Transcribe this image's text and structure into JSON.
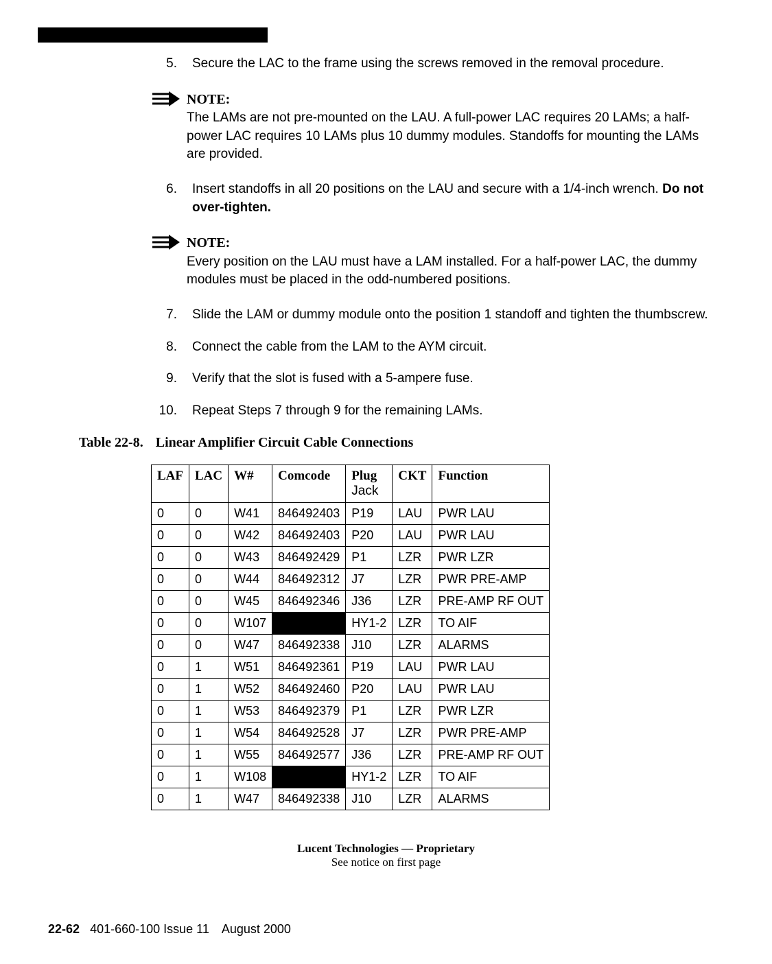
{
  "items": {
    "i5": {
      "num": "5.",
      "text": "Secure the LAC to the frame using the screws removed in the removal procedure."
    },
    "i6": {
      "num": "6.",
      "pre": "Insert standoffs in all 20 positions on the LAU and secure with a 1/4-inch wrench. ",
      "bold": "Do not over-tighten."
    },
    "i7": {
      "num": "7.",
      "text": "Slide the LAM or dummy module onto the position 1 standoff and tighten the thumbscrew."
    },
    "i8": {
      "num": "8.",
      "text": "Connect the cable from the LAM to the AYM circuit."
    },
    "i9": {
      "num": "9.",
      "text": "Verify that the slot is fused with a 5-ampere fuse."
    },
    "i10": {
      "num": "10.",
      "text": "Repeat Steps 7 through 9 for the remaining LAMs."
    }
  },
  "notes": {
    "label": "NOTE:",
    "n1": "The LAMs are not pre-mounted on the LAU. A full-power LAC requires 20 LAMs; a half-power LAC requires 10 LAMs plus 10 dummy modules. Standoffs for mounting the LAMs are provided.",
    "n2": "Every position on the LAU must have a LAM installed. For a half-power LAC, the dummy modules must be placed in the odd-numbered positions."
  },
  "table": {
    "titleNum": "Table 22-8.",
    "titleText": "Linear Amplifier Circuit Cable Connections",
    "headers": {
      "laf": "LAF",
      "lac": "LAC",
      "wnum": "W#",
      "comcode": "Comcode",
      "plugTop": "Plug",
      "plugBot": "Jack",
      "ckt": "CKT",
      "func": "Function"
    },
    "rows": [
      {
        "laf": "0",
        "lac": "0",
        "w": "W41",
        "com": "846492403",
        "plug": "P19",
        "ckt": "LAU",
        "fn": "PWR LAU",
        "redact": false
      },
      {
        "laf": "0",
        "lac": "0",
        "w": "W42",
        "com": "846492403",
        "plug": "P20",
        "ckt": "LAU",
        "fn": "PWR LAU",
        "redact": false
      },
      {
        "laf": "0",
        "lac": "0",
        "w": "W43",
        "com": "846492429",
        "plug": "P1",
        "ckt": "LZR",
        "fn": "PWR LZR",
        "redact": false
      },
      {
        "laf": "0",
        "lac": "0",
        "w": "W44",
        "com": "846492312",
        "plug": "J7",
        "ckt": "LZR",
        "fn": "PWR PRE-AMP",
        "redact": false
      },
      {
        "laf": "0",
        "lac": "0",
        "w": "W45",
        "com": "846492346",
        "plug": "J36",
        "ckt": "LZR",
        "fn": "PRE-AMP RF OUT",
        "redact": false
      },
      {
        "laf": "0",
        "lac": "0",
        "w": "W107",
        "com": "",
        "plug": "HY1-2",
        "ckt": "LZR",
        "fn": "TO AIF",
        "redact": true
      },
      {
        "laf": "0",
        "lac": "0",
        "w": "W47",
        "com": "846492338",
        "plug": "J10",
        "ckt": "LZR",
        "fn": "ALARMS",
        "redact": false
      },
      {
        "laf": "0",
        "lac": "1",
        "w": "W51",
        "com": "846492361",
        "plug": "P19",
        "ckt": "LAU",
        "fn": "PWR LAU",
        "redact": false
      },
      {
        "laf": "0",
        "lac": "1",
        "w": "W52",
        "com": "846492460",
        "plug": "P20",
        "ckt": "LAU",
        "fn": "PWR LAU",
        "redact": false
      },
      {
        "laf": "0",
        "lac": "1",
        "w": "W53",
        "com": "846492379",
        "plug": "P1",
        "ckt": "LZR",
        "fn": "PWR LZR",
        "redact": false
      },
      {
        "laf": "0",
        "lac": "1",
        "w": "W54",
        "com": "846492528",
        "plug": "J7",
        "ckt": "LZR",
        "fn": "PWR PRE-AMP",
        "redact": false
      },
      {
        "laf": "0",
        "lac": "1",
        "w": "W55",
        "com": "846492577",
        "plug": "J36",
        "ckt": "LZR",
        "fn": "PRE-AMP RF OUT",
        "redact": false
      },
      {
        "laf": "0",
        "lac": "1",
        "w": "W108",
        "com": "",
        "plug": "HY1-2",
        "ckt": "LZR",
        "fn": "TO AIF",
        "redact": true
      },
      {
        "laf": "0",
        "lac": "1",
        "w": "W47",
        "com": "846492338",
        "plug": "J10",
        "ckt": "LZR",
        "fn": "ALARMS",
        "redact": false
      }
    ]
  },
  "footer": {
    "line1": "Lucent Technologies — Proprietary",
    "line2": "See notice on first page",
    "page": "22-62",
    "docinfo": "401-660-100 Issue 11 August 2000"
  }
}
